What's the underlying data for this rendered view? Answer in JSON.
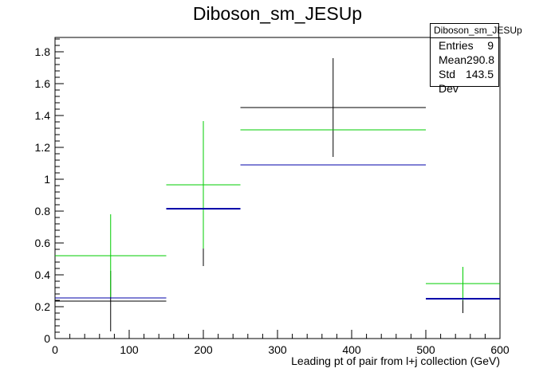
{
  "chart_data": {
    "type": "scatter",
    "title": "Diboson_sm_JESUp",
    "xlabel": "Leading pt of pair from l+j collection (GeV)",
    "ylabel": "",
    "xlim": [
      0,
      600
    ],
    "ylim": [
      0,
      1.89
    ],
    "x_ticks": [
      0,
      100,
      200,
      300,
      400,
      500,
      600
    ],
    "y_ticks": [
      0,
      0.2,
      0.4,
      0.6,
      0.8,
      1,
      1.2,
      1.4,
      1.6,
      1.8
    ],
    "y_tick_labels": [
      "0",
      "0.2",
      "0.4",
      "0.6",
      "0.8",
      "1",
      "1.2",
      "1.4",
      "1.6",
      "1.8"
    ],
    "grid": false,
    "bins": [
      [
        0,
        150
      ],
      [
        150,
        250
      ],
      [
        250,
        500
      ],
      [
        500,
        600
      ]
    ],
    "series": [
      {
        "color": "#000000",
        "values": [
          0.235,
          0.815,
          1.45,
          0.25
        ],
        "errors": [
          0.19,
          0.36,
          0.31,
          0.09
        ]
      },
      {
        "color": "#00cc00",
        "values": [
          0.52,
          0.965,
          1.31,
          0.345
        ],
        "errors": [
          0.26,
          0.4,
          0.0,
          0.105
        ]
      },
      {
        "color": "#0000aa",
        "values": [
          0.255,
          0.815,
          1.09,
          0.25
        ],
        "errors": [
          0.0,
          0.0,
          0.0,
          0.0
        ]
      }
    ]
  },
  "stats": {
    "title": "Diboson_sm_JESUp",
    "rows": [
      {
        "label": "Entries",
        "value": "9"
      },
      {
        "label": "Mean",
        "value": "290.8"
      },
      {
        "label": "Std Dev",
        "value": "143.5"
      }
    ]
  }
}
